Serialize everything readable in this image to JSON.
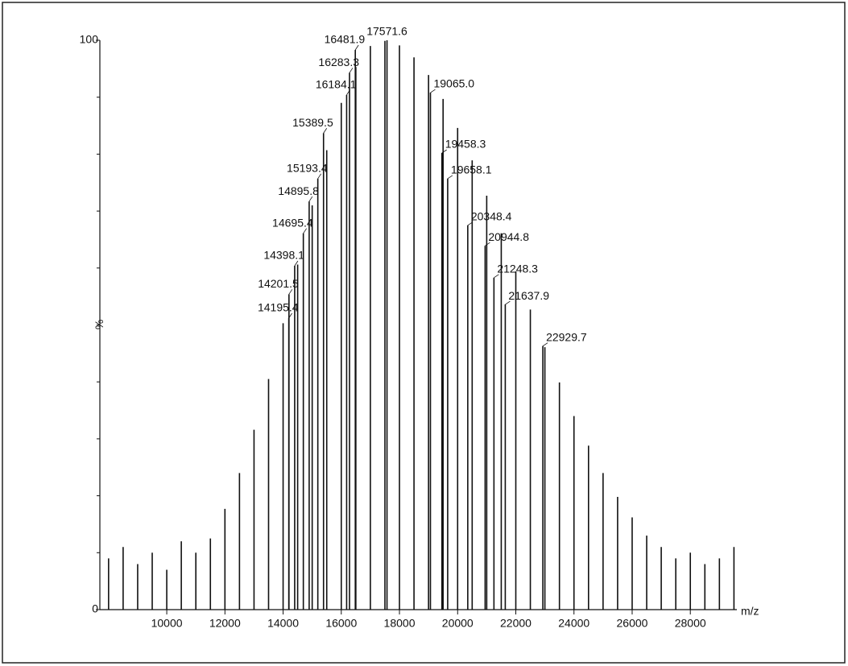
{
  "chart_data": {
    "type": "spectrum",
    "x_label": "m/z",
    "y_label": "%",
    "color": "#111111",
    "xlim": [
      7700,
      29600
    ],
    "xticks": [
      10000,
      12000,
      14000,
      16000,
      18000,
      20000,
      22000,
      24000,
      26000,
      28000
    ],
    "ylim": [
      0,
      100
    ],
    "yticks": [
      0,
      100
    ],
    "yminorticks": [
      10,
      20,
      30,
      40,
      50,
      60,
      70,
      80,
      90
    ],
    "peaks": {
      "x": [
        8000,
        8500,
        9000,
        9500,
        10000,
        10500,
        11000,
        11500,
        12000,
        12500,
        13000,
        13500,
        14000,
        14500,
        15000,
        15500,
        16000,
        16500,
        17000,
        17500,
        18000,
        18500,
        19000,
        19500,
        20000,
        20500,
        21000,
        21500,
        22000,
        22500,
        23000,
        23500,
        24000,
        24500,
        25000,
        25500,
        26000,
        26500,
        27000,
        27500,
        28000,
        28500,
        29000,
        29500
      ],
      "values": [
        9,
        11,
        8,
        10,
        7,
        12,
        10,
        12.5,
        17.7,
        24,
        31.6,
        40.5,
        50.3,
        60.6,
        71,
        80.7,
        89,
        95.3,
        99,
        99.9,
        99.1,
        97,
        93.9,
        89.7,
        84.6,
        78.9,
        72.7,
        66.1,
        59.4,
        52.7,
        46.1,
        39.9,
        34,
        28.8,
        24,
        19.8,
        16.2,
        13,
        11,
        9,
        10,
        8,
        9,
        11
      ]
    },
    "annotated": {
      "x": [
        14195.4,
        14201.5,
        14398.1,
        14695.4,
        14895.8,
        15193.4,
        15389.5,
        16184.1,
        16283.3,
        16481.9,
        17571.6,
        19065.0,
        19458.3,
        19658.1,
        20348.4,
        20944.8,
        21248.3,
        21637.9,
        22929.7
      ],
      "x_labels": [
        "14195.4",
        "14201.5",
        "14398.1",
        "14695.4",
        "14895.8",
        "15193.4",
        "15389.5",
        "16184.1",
        "16283.3",
        "16481.9",
        "17571.6",
        "19065.0",
        "19458.3",
        "19658.1",
        "20348.4",
        "20944.8",
        "21248.3",
        "21637.9",
        "22929.7"
      ],
      "values": [
        51.2,
        55.4,
        60.4,
        66.1,
        71.7,
        75.7,
        83.7,
        90.4,
        94.3,
        98.3,
        100,
        90.8,
        80.2,
        75.7,
        67.5,
        63.9,
        58.3,
        53.6,
        46.3
      ]
    }
  }
}
